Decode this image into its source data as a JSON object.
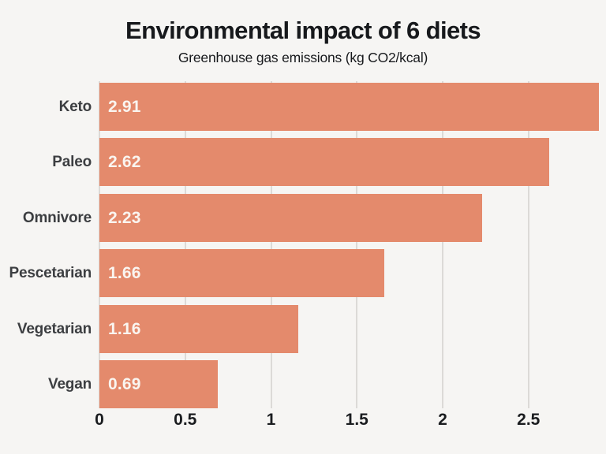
{
  "chart_data": {
    "type": "bar",
    "orientation": "horizontal",
    "title": "Environmental impact of 6 diets",
    "subtitle": "Greenhouse gas emissions (kg CO2/kcal)",
    "categories": [
      "Keto",
      "Paleo",
      "Omnivore",
      "Pescetarian",
      "Vegetarian",
      "Vegan"
    ],
    "values": [
      2.91,
      2.62,
      2.23,
      1.66,
      1.16,
      0.69
    ],
    "value_labels": [
      "2.91",
      "2.62",
      "2.23",
      "1.66",
      "1.16",
      "0.69"
    ],
    "x_ticks": [
      0,
      0.5,
      1,
      1.5,
      2,
      2.5
    ],
    "x_tick_labels": [
      "0",
      "0.5",
      "1",
      "1.5",
      "2",
      "2.5"
    ],
    "xlim": [
      0,
      2.915
    ],
    "grid": true,
    "legend": false,
    "colors": {
      "bar": "#e48a6c",
      "background": "#f6f5f3",
      "gridline": "#dcdad7",
      "title_text": "#17191c",
      "category_text": "#3c3e41",
      "value_text": "#faf5f0",
      "tick_text": "#1a1c1f"
    }
  }
}
